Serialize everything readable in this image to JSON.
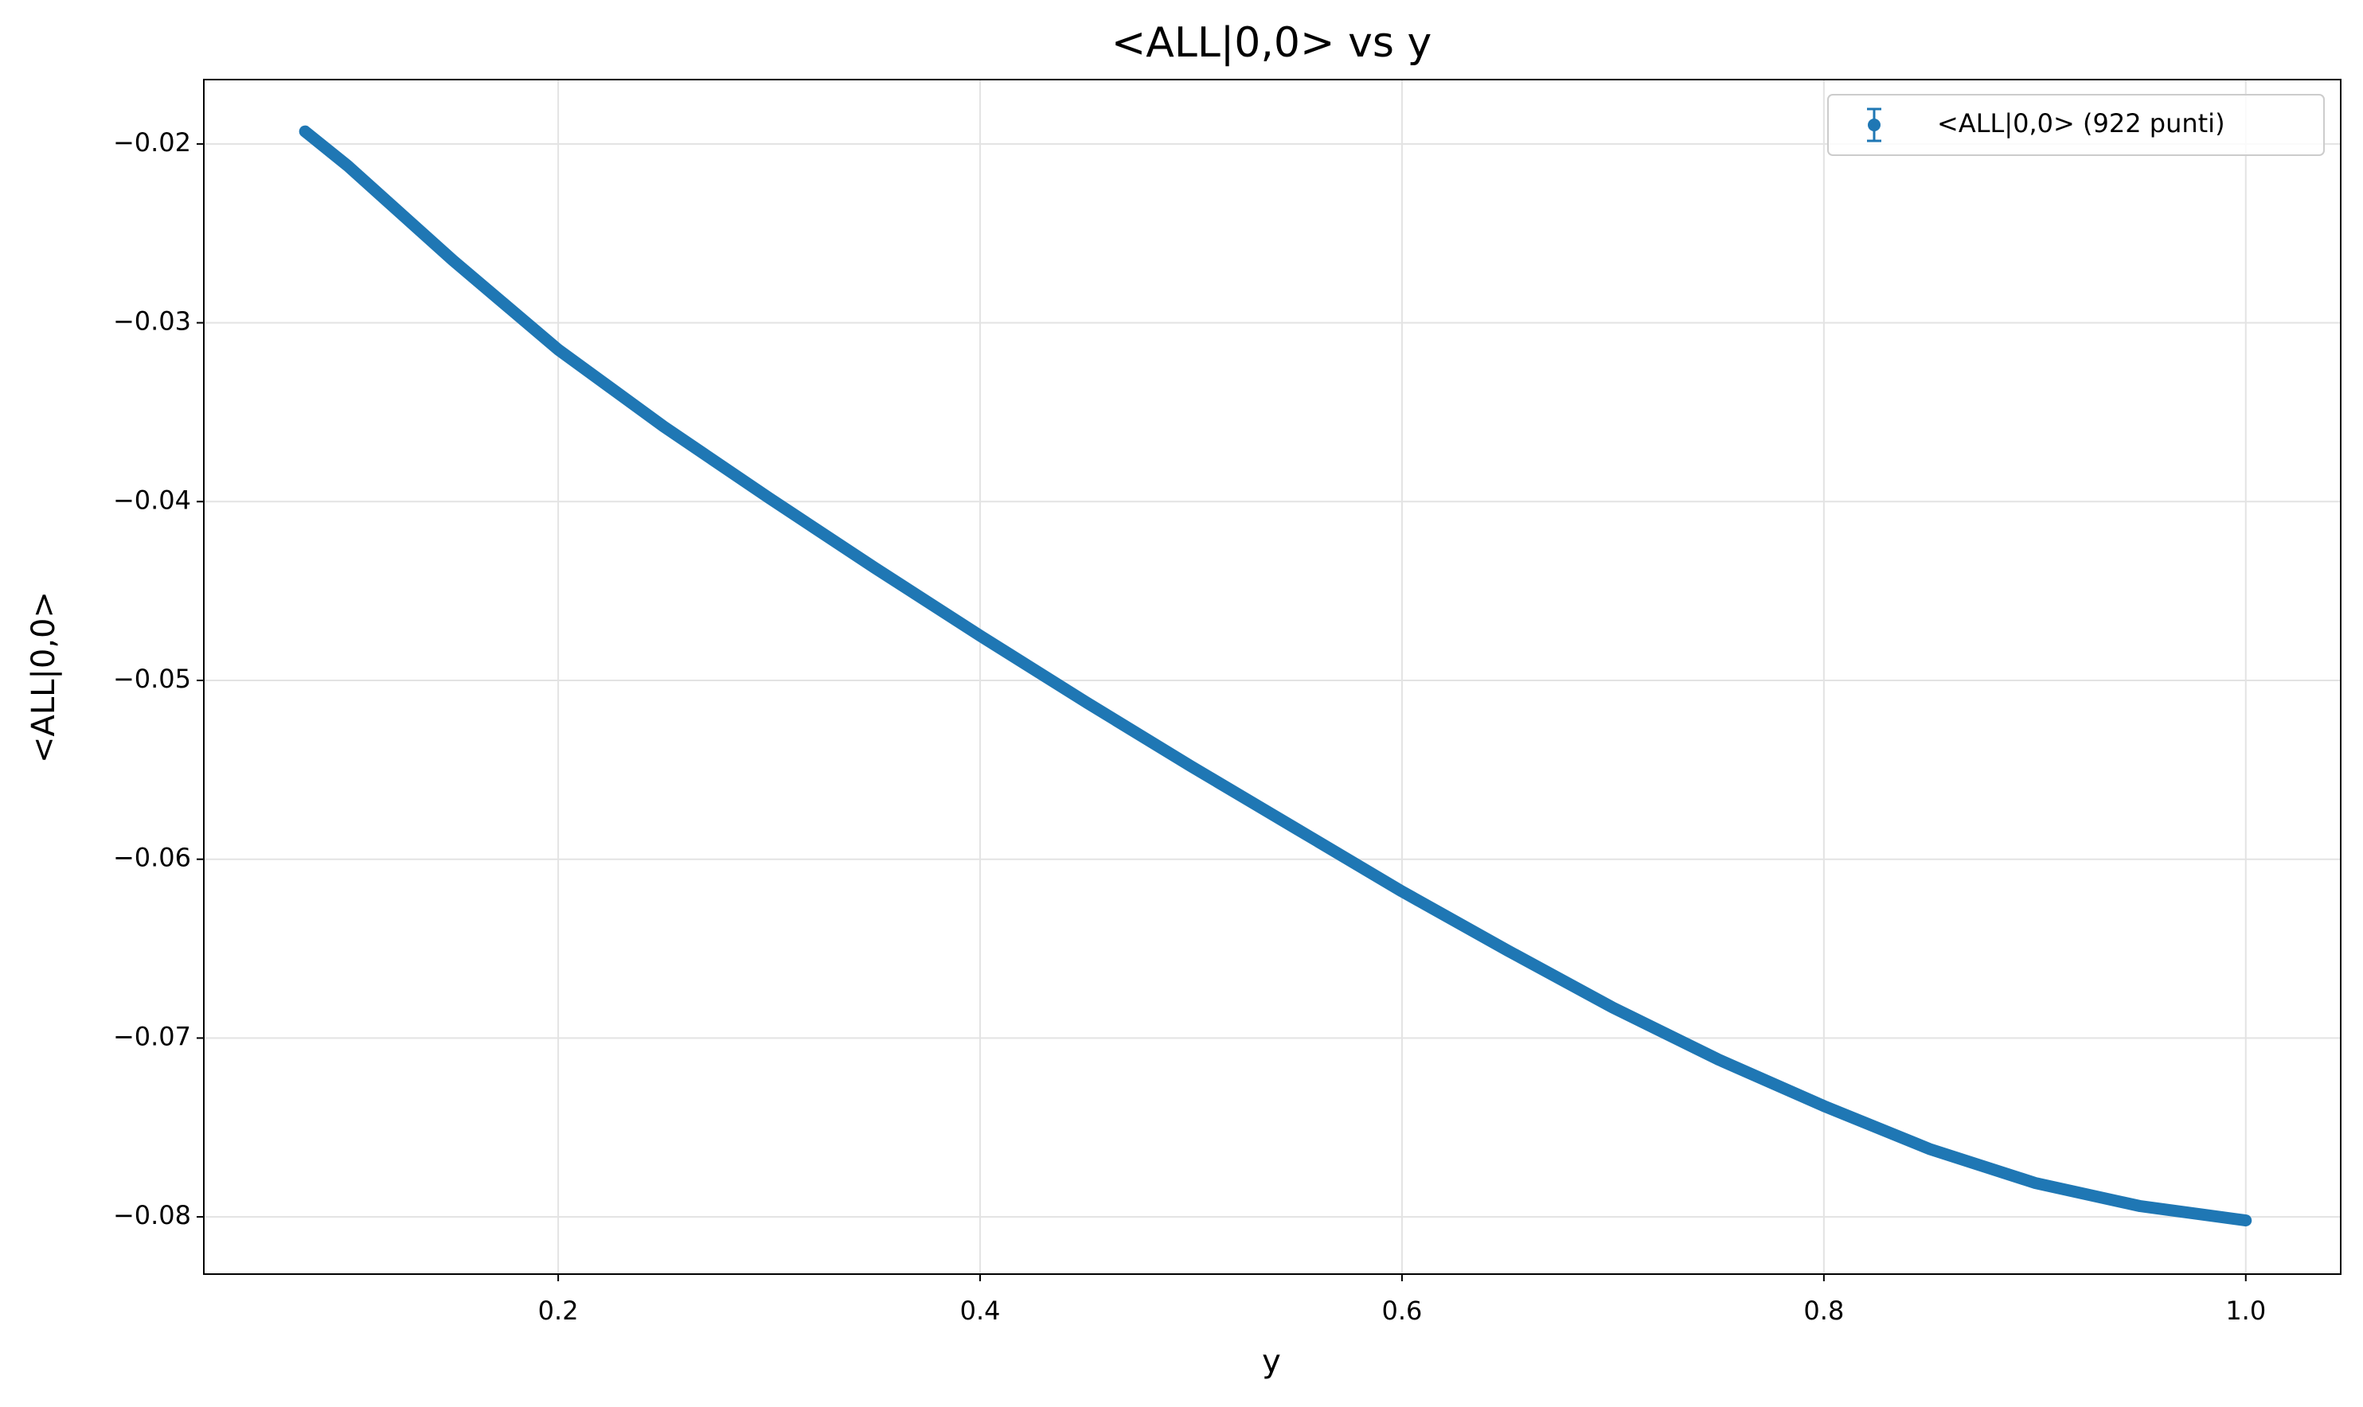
{
  "chart_data": {
    "type": "errorbar",
    "title": "<ALL|0,0> vs y",
    "x_label": "y",
    "y_label": "<ALL|0,0>",
    "x": [
      0.08,
      0.1,
      0.15,
      0.2,
      0.25,
      0.3,
      0.35,
      0.4,
      0.45,
      0.5,
      0.55,
      0.6,
      0.65,
      0.7,
      0.75,
      0.8,
      0.85,
      0.9,
      0.95,
      1.0
    ],
    "series": [
      {
        "name": "<ALL|0,0> (922 punti)",
        "color": "#1f77b4",
        "values": [
          -0.0193,
          -0.0212,
          -0.0265,
          -0.0315,
          -0.0358,
          -0.0398,
          -0.0437,
          -0.0475,
          -0.0512,
          -0.0548,
          -0.0583,
          -0.0618,
          -0.0651,
          -0.0683,
          -0.0712,
          -0.0738,
          -0.0762,
          -0.0781,
          -0.0794,
          -0.0802
        ]
      }
    ],
    "xlim": [
      0.032,
      1.045
    ],
    "ylim": [
      -0.0832,
      -0.0164
    ],
    "xticks": [
      0.2,
      0.4,
      0.6,
      0.8,
      {
        "value": 1.0,
        "label": "1.0"
      }
    ],
    "yticks": [
      {
        "value": -0.08,
        "label": "−0.08"
      },
      {
        "value": -0.07,
        "label": "−0.07"
      },
      {
        "value": -0.06,
        "label": "−0.06"
      },
      {
        "value": -0.05,
        "label": "−0.05"
      },
      {
        "value": -0.04,
        "label": "−0.04"
      },
      {
        "value": -0.03,
        "label": "−0.03"
      },
      {
        "value": -0.02,
        "label": "−0.02"
      }
    ],
    "grid": true,
    "legend": "upper right"
  }
}
